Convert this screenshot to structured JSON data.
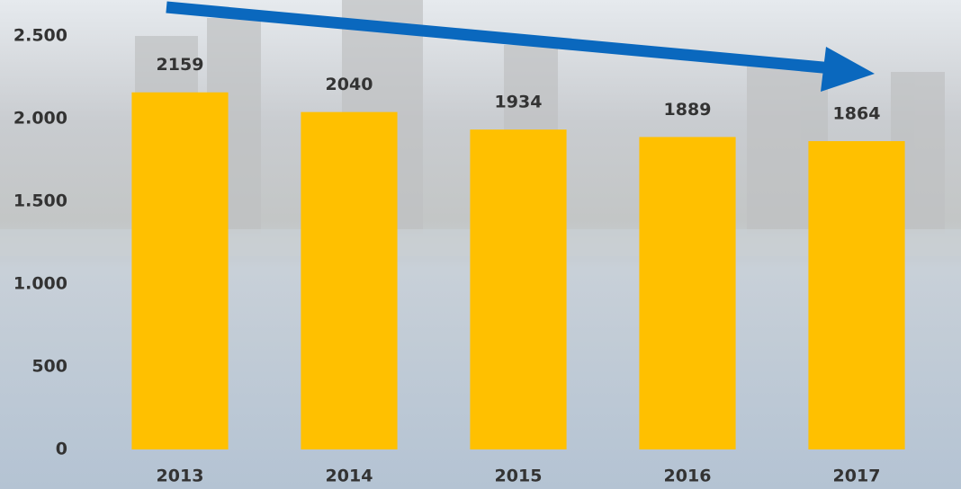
{
  "chart_data": {
    "type": "bar",
    "categories": [
      "2013",
      "2014",
      "2015",
      "2016",
      "2017"
    ],
    "values": [
      2159,
      2040,
      1934,
      1889,
      1864
    ],
    "color": "#ffc000",
    "ylim": [
      0,
      2500
    ],
    "yticks": [
      0,
      500,
      {
        "value": 1000,
        "label": "1.000"
      },
      {
        "value": 1500,
        "label": "1.500"
      },
      {
        "value": 2000,
        "label": "2.000"
      },
      {
        "value": 2500,
        "label": "2.500"
      }
    ],
    "grid": false
  }
}
